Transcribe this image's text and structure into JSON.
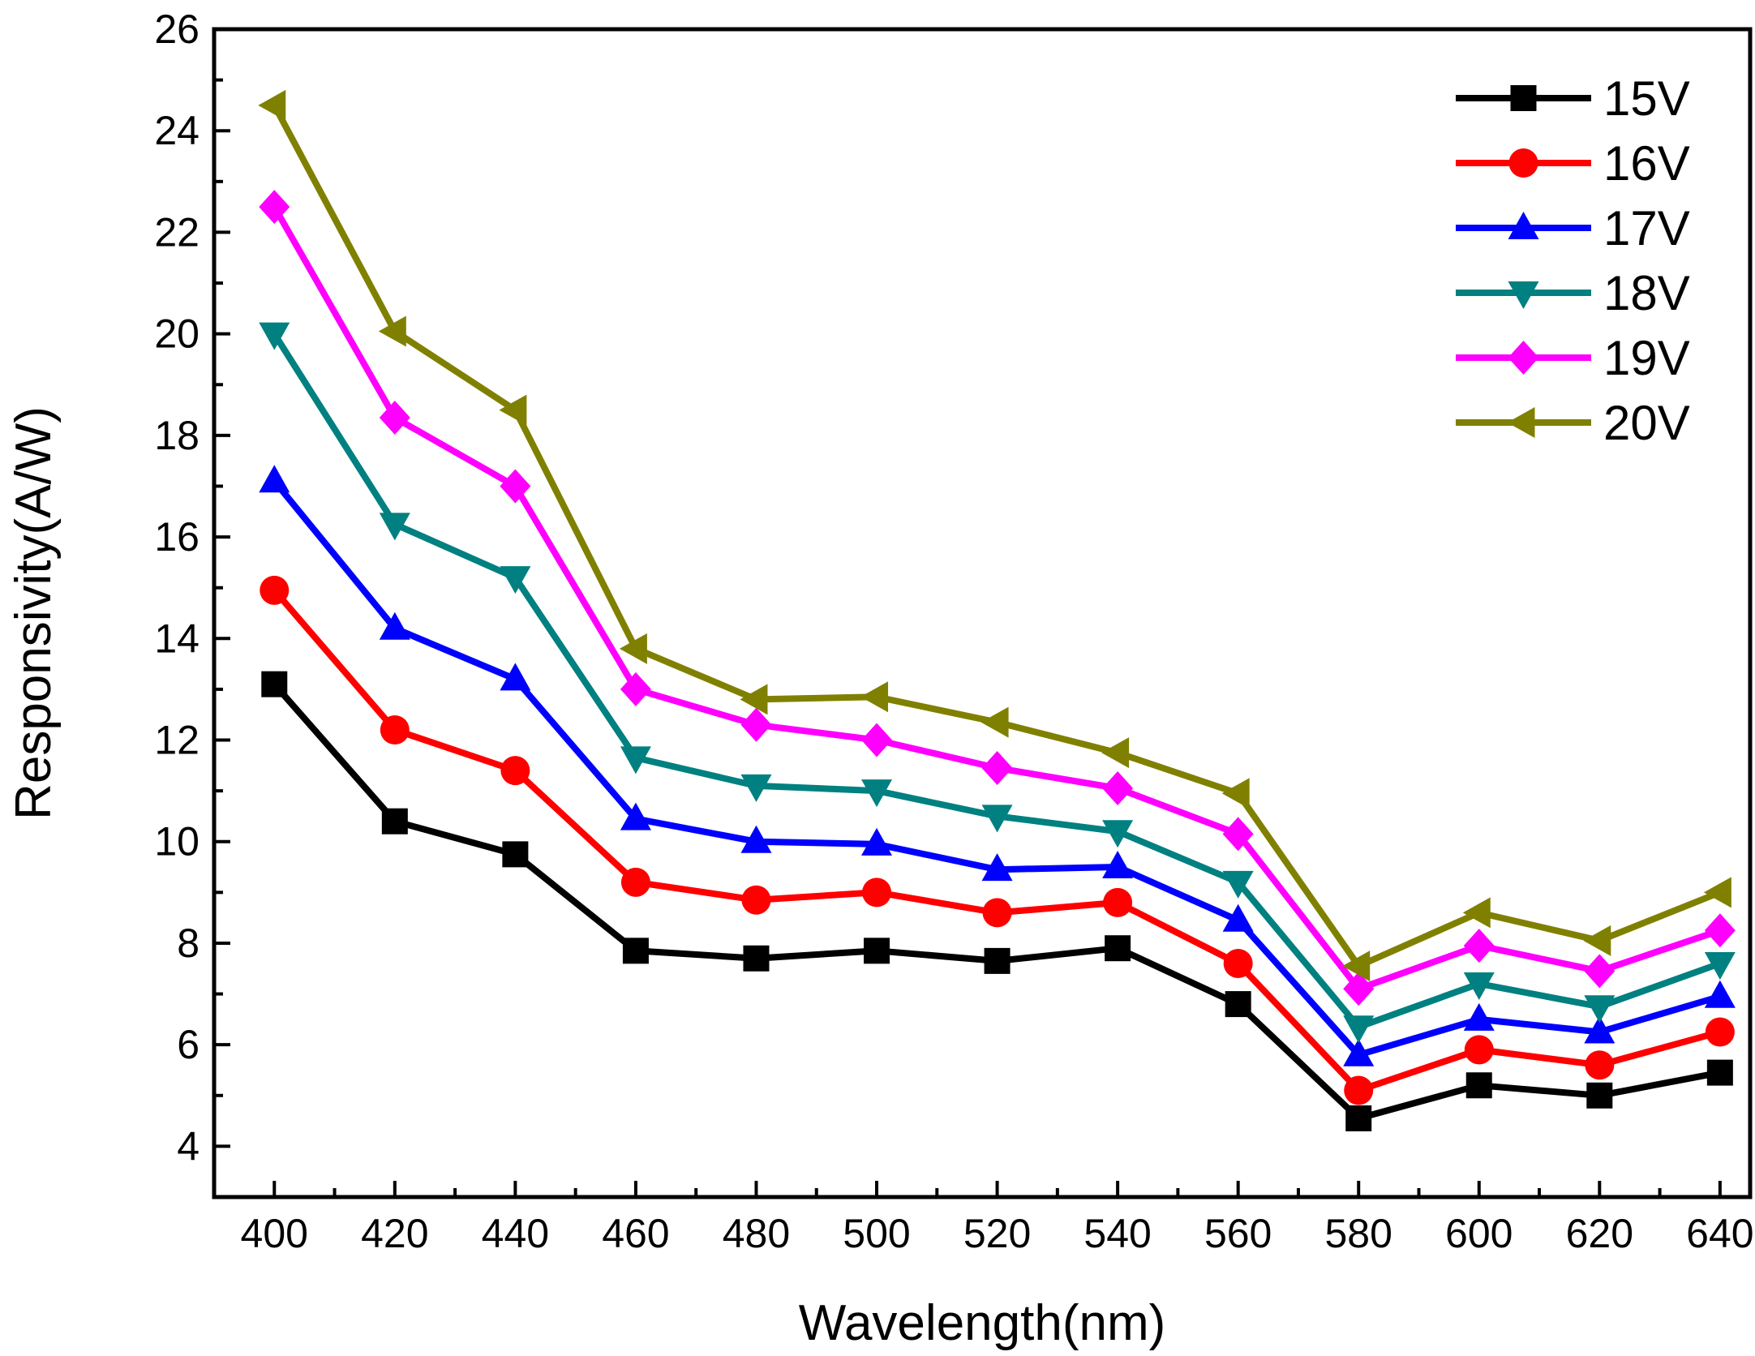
{
  "chart_data": {
    "type": "line",
    "title": "",
    "xlabel": "Wavelength(nm)",
    "ylabel": "Responsivity(A/W)",
    "xlim": [
      390,
      645
    ],
    "ylim": [
      3,
      26
    ],
    "x": [
      400,
      420,
      440,
      460,
      480,
      500,
      520,
      540,
      560,
      580,
      600,
      620,
      640
    ],
    "x_ticks": [
      "400",
      "420",
      "440",
      "460",
      "480",
      "500",
      "520",
      "540",
      "560",
      "580",
      "600",
      "620",
      "640"
    ],
    "y_ticks": [
      "4",
      "6",
      "8",
      "10",
      "12",
      "14",
      "16",
      "18",
      "20",
      "22",
      "24",
      "26"
    ],
    "grid": false,
    "legend_position": "top-right",
    "series": [
      {
        "name": "15V",
        "color": "#000000",
        "marker": "square",
        "values": [
          13.1,
          10.4,
          9.75,
          7.85,
          7.7,
          7.85,
          7.65,
          7.9,
          6.8,
          4.55,
          5.2,
          5.0,
          5.45
        ]
      },
      {
        "name": "16V",
        "color": "#ff0000",
        "marker": "circle",
        "values": [
          14.95,
          12.2,
          11.4,
          9.2,
          8.85,
          9.0,
          8.6,
          8.8,
          7.6,
          5.1,
          5.9,
          5.6,
          6.25
        ]
      },
      {
        "name": "17V",
        "color": "#0000ff",
        "marker": "triangle-up",
        "values": [
          17.1,
          14.2,
          13.2,
          10.45,
          10.0,
          9.95,
          9.45,
          9.5,
          8.45,
          5.8,
          6.5,
          6.25,
          6.95
        ]
      },
      {
        "name": "18V",
        "color": "#008080",
        "marker": "triangle-down",
        "values": [
          20.0,
          16.25,
          15.2,
          11.65,
          11.1,
          11.0,
          10.5,
          10.2,
          9.2,
          6.35,
          7.2,
          6.75,
          7.6
        ]
      },
      {
        "name": "19V",
        "color": "#ff00ff",
        "marker": "diamond",
        "values": [
          22.5,
          18.35,
          17.0,
          13.0,
          12.3,
          12.0,
          11.45,
          11.05,
          10.15,
          7.1,
          7.95,
          7.45,
          8.25
        ]
      },
      {
        "name": "20V",
        "color": "#808000",
        "marker": "triangle-left",
        "values": [
          24.5,
          20.05,
          18.5,
          13.8,
          12.8,
          12.85,
          12.35,
          11.75,
          10.95,
          7.55,
          8.6,
          8.05,
          9.0
        ]
      }
    ]
  }
}
